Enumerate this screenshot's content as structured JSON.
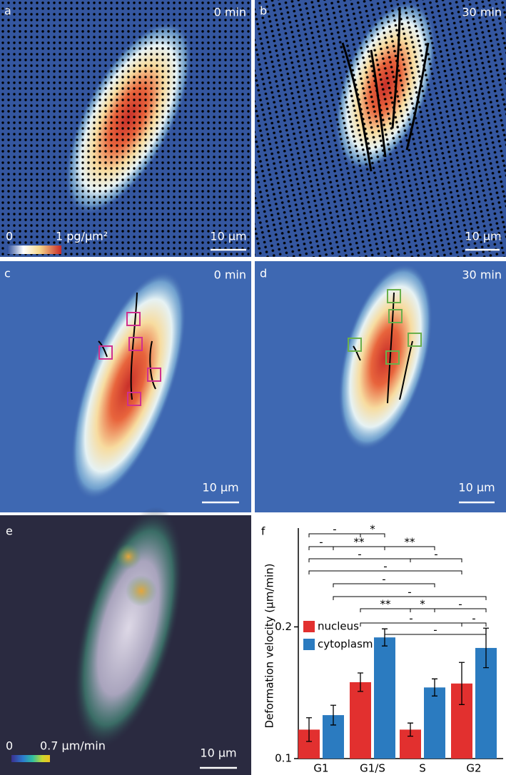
{
  "panels": [
    {
      "label": "a",
      "time": "0 min",
      "scale": "10 µm",
      "colorbar_min": "0",
      "colorbar_max": "1 pg/µm²"
    },
    {
      "label": "b",
      "time": "30 min",
      "scale": "10 µm"
    },
    {
      "label": "c",
      "time": "0 min",
      "scale": "10 µm"
    },
    {
      "label": "d",
      "time": "30 min",
      "scale": "10 µm"
    },
    {
      "label": "e",
      "scale": "10 µm",
      "colorbar_min": "0",
      "colorbar_max": "0.7 µm/min"
    }
  ],
  "chart_data": {
    "type": "bar",
    "label": "f",
    "y_label": "Deformation velocity (µm/min)",
    "categories": [
      "G1",
      "G1/S",
      "S",
      "G2"
    ],
    "series": [
      {
        "name": "nucleus",
        "color": "#e2302f",
        "values": [
          0.122,
          0.158,
          0.122,
          0.157
        ],
        "errors": [
          0.009,
          0.007,
          0.005,
          0.016
        ]
      },
      {
        "name": "cytoplasm",
        "color": "#2b7bc0",
        "values": [
          0.133,
          0.192,
          0.154,
          0.184
        ],
        "errors": [
          0.0075,
          0.0065,
          0.0065,
          0.015
        ]
      }
    ],
    "ylim": [
      0.1,
      0.275
    ],
    "yticks": [
      0.1,
      0.2
    ],
    "legend": "left",
    "significance": [
      {
        "from": 0,
        "to": 2,
        "label": "-"
      },
      {
        "from": 2,
        "to": 3,
        "label": "*"
      },
      {
        "from": 0,
        "to": 1,
        "label": "-"
      },
      {
        "from": 1,
        "to": 3,
        "label": "**"
      },
      {
        "from": 3,
        "to": 5,
        "label": "**"
      },
      {
        "from": 0,
        "to": 4,
        "label": "-"
      },
      {
        "from": 4,
        "to": 6,
        "label": "-"
      },
      {
        "from": 0,
        "to": 6,
        "label": "-"
      },
      {
        "from": 1,
        "to": 5,
        "label": "-"
      },
      {
        "from": 1,
        "to": 7,
        "label": "-"
      },
      {
        "from": 2,
        "to": 4,
        "label": "**"
      },
      {
        "from": 4,
        "to": 5,
        "label": "*"
      },
      {
        "from": 5,
        "to": 7,
        "label": "-"
      },
      {
        "from": 2,
        "to": 6,
        "label": "-"
      },
      {
        "from": 6,
        "to": 7,
        "label": "-"
      },
      {
        "from": 3,
        "to": 7,
        "label": "-"
      }
    ]
  }
}
